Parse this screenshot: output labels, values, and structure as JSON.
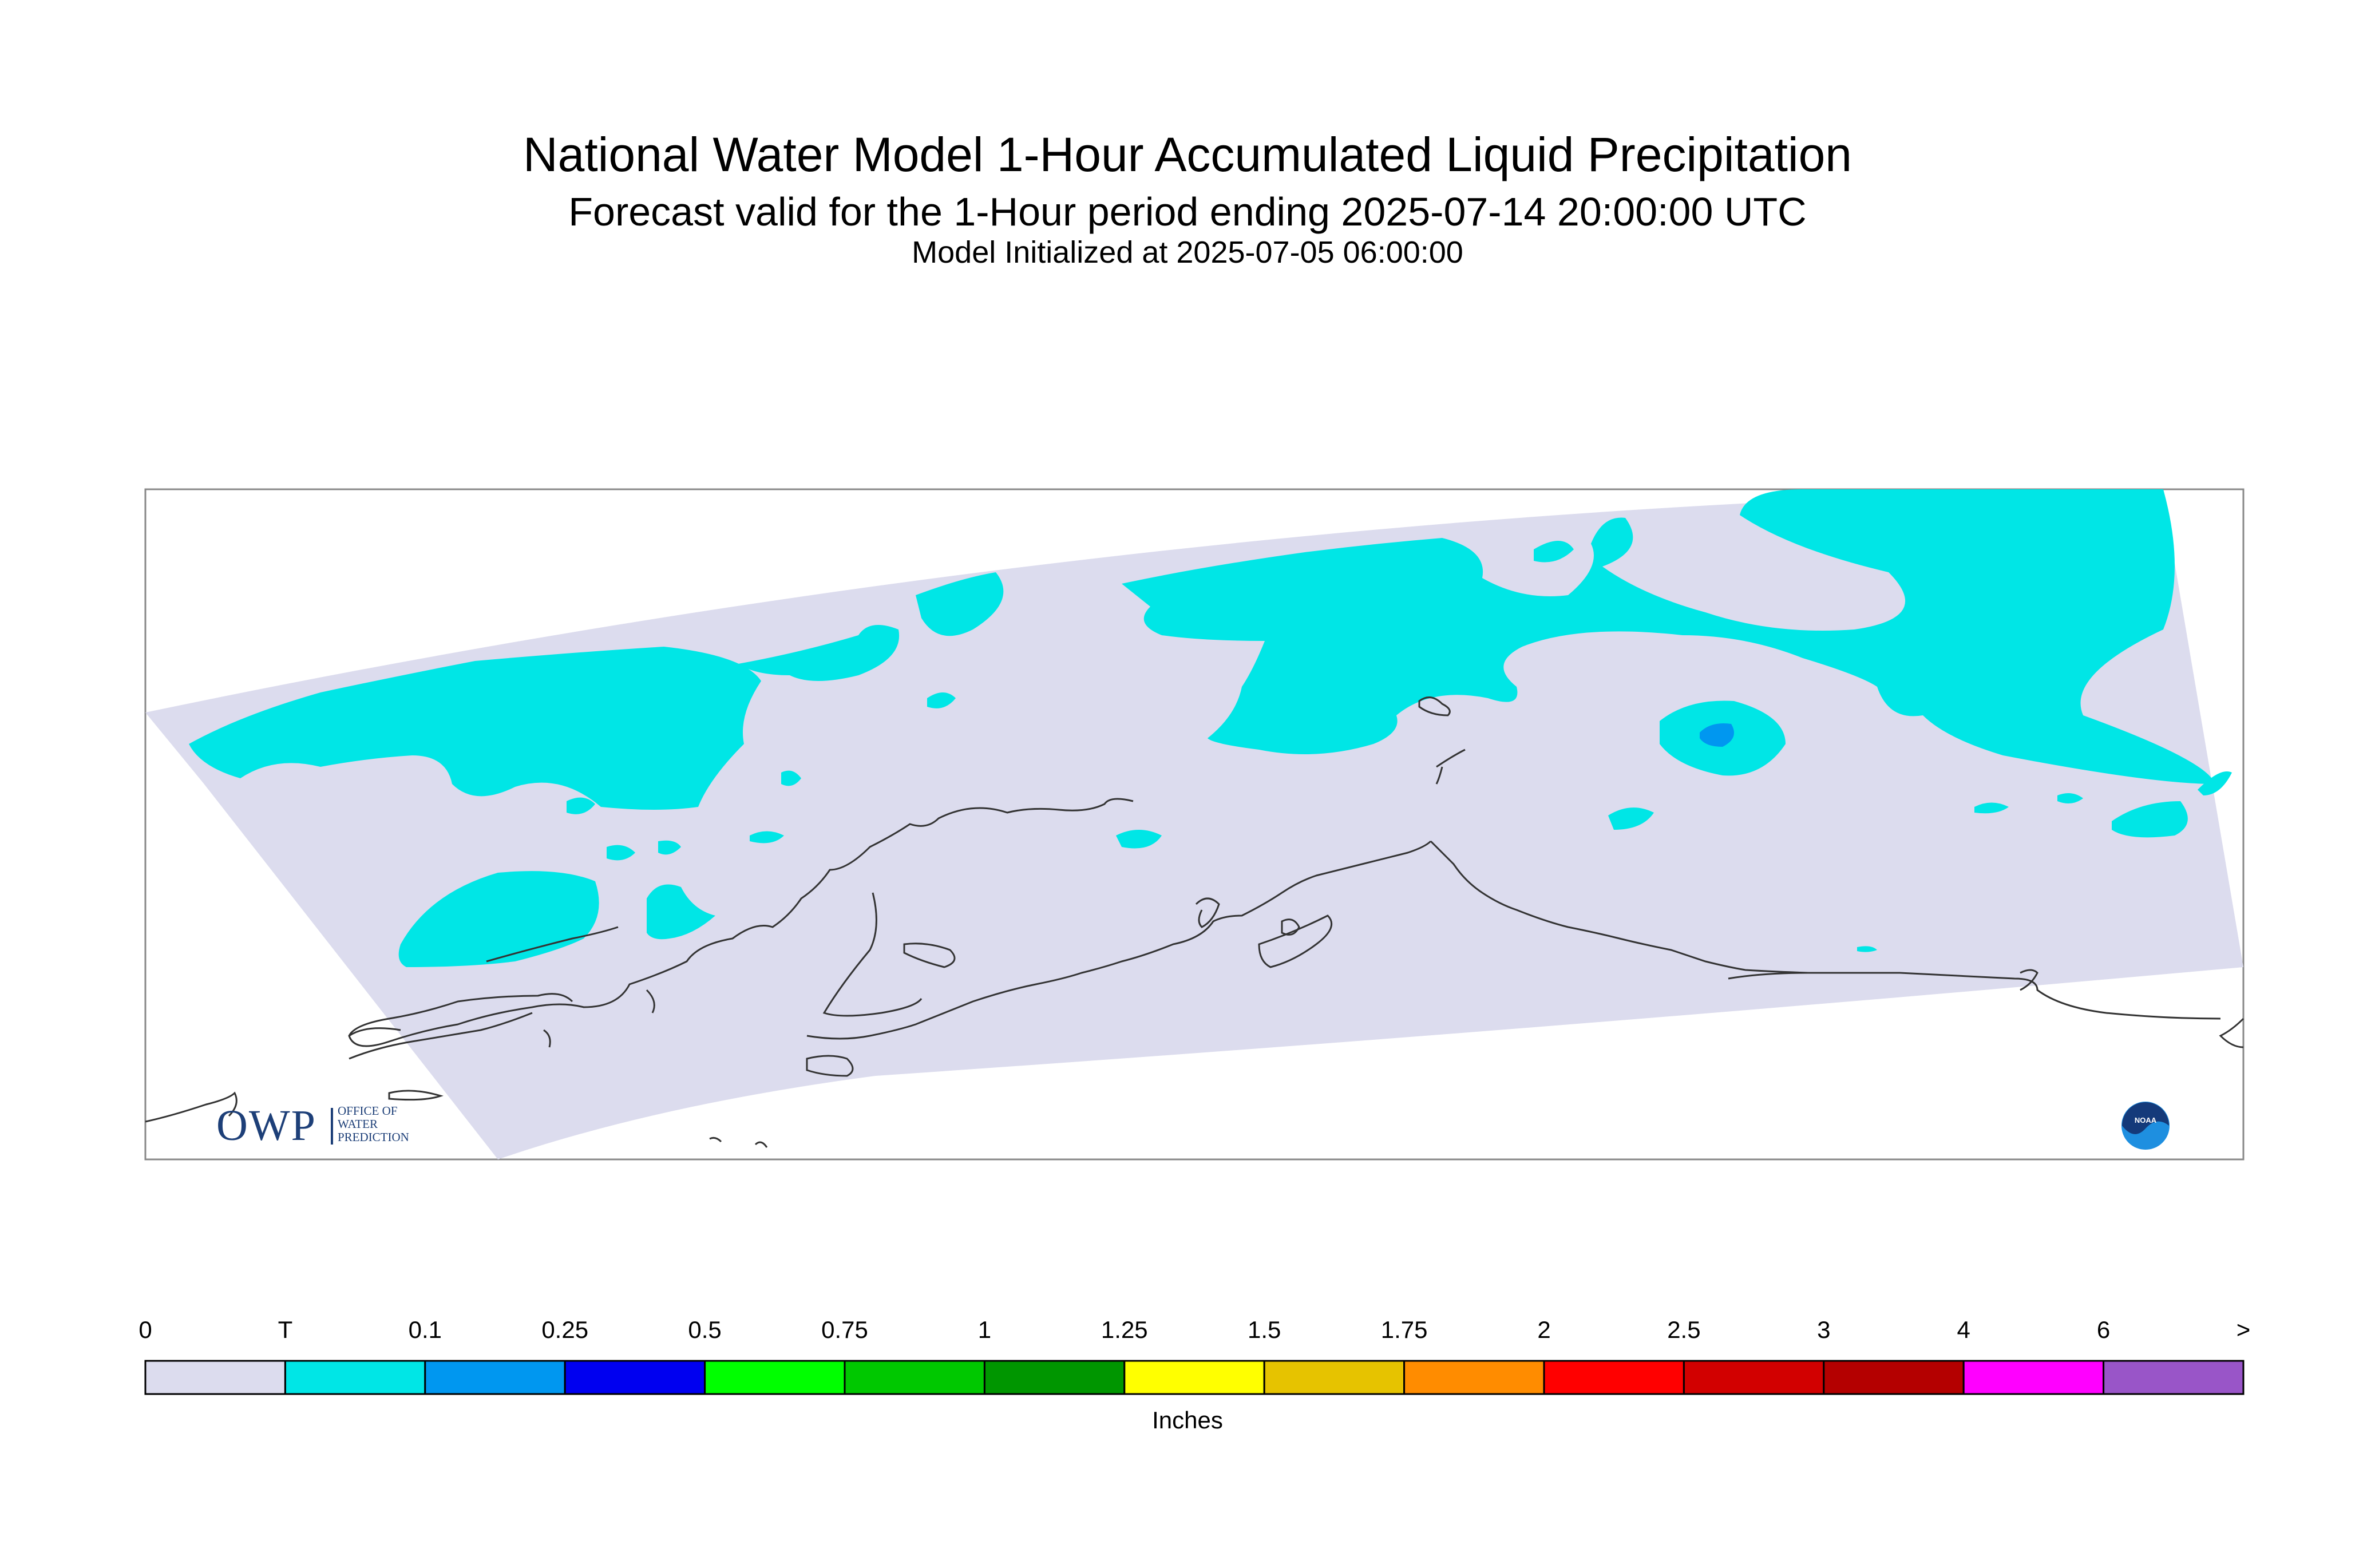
{
  "header": {
    "title": "National Water Model 1-Hour Accumulated Liquid Precipitation",
    "subtitle": "Forecast valid for the 1-Hour period ending 2025-07-14 20:00:00 UTC",
    "init": "Model Initialized at 2025-07-05 06:00:00"
  },
  "legend": {
    "labels": [
      "0",
      "T",
      "0.1",
      "0.25",
      "0.5",
      "0.75",
      "1",
      "1.25",
      "1.5",
      "1.75",
      "2",
      "2.5",
      "3",
      "4",
      "6",
      ">"
    ],
    "colors": [
      "#dcdcee",
      "#00e6e6",
      "#0097f0",
      "#0000f0",
      "#00ff00",
      "#00c800",
      "#009600",
      "#ffff00",
      "#e6c300",
      "#ff8c00",
      "#ff0000",
      "#d20000",
      "#b40000",
      "#ff00ff",
      "#9955c8"
    ],
    "units": "Inches"
  },
  "map": {
    "domain_color": "#dcdcee",
    "trace_color": "#00e6e6",
    "light_color": "#0097f0",
    "coast_color": "#333333"
  },
  "logos": {
    "owp": {
      "main": "OWP",
      "lines": [
        "OFFICE OF",
        "WATER",
        "PREDICTION"
      ]
    },
    "noaa": {
      "text": "NOAA"
    }
  }
}
